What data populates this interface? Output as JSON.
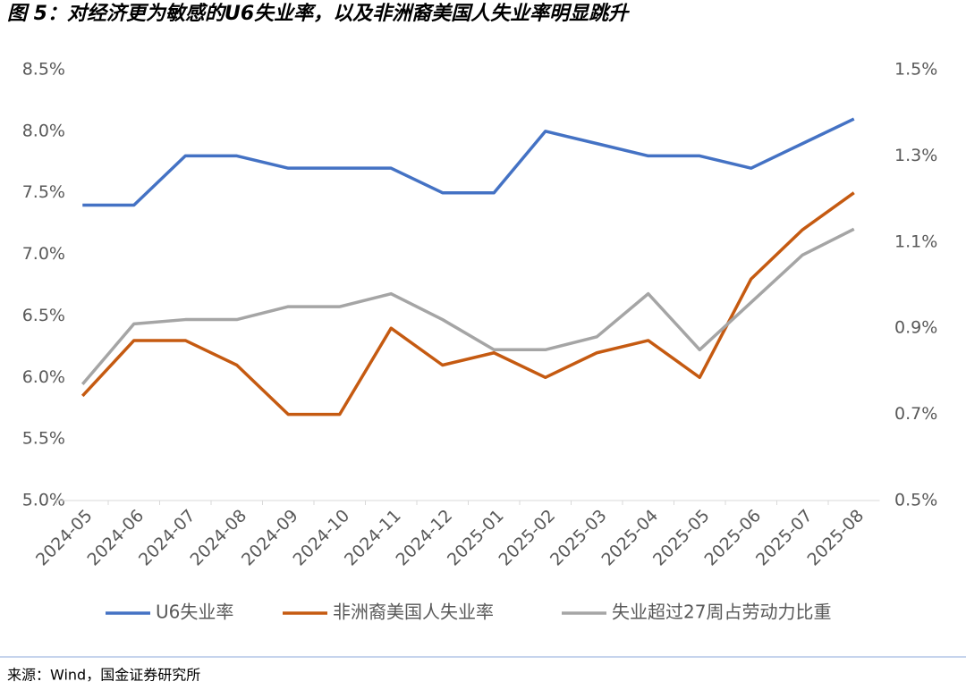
{
  "chart_data": {
    "type": "line",
    "title": "图 5：对经济更为敏感的U6失业率，以及非洲裔美国人失业率明显跳升",
    "source": "来源：Wind，国金证券研究所",
    "categories": [
      "2024-05",
      "2024-06",
      "2024-07",
      "2024-08",
      "2024-09",
      "2024-10",
      "2024-11",
      "2024-12",
      "2025-01",
      "2025-02",
      "2025-03",
      "2025-04",
      "2025-05",
      "2025-06",
      "2025-07",
      "2025-08"
    ],
    "series": [
      {
        "name": "U6失业率",
        "color": "#4472c4",
        "values": [
          7.4,
          7.4,
          7.8,
          7.8,
          7.7,
          7.7,
          7.7,
          7.5,
          7.5,
          8.0,
          7.9,
          7.8,
          7.8,
          7.7,
          7.9,
          8.1
        ]
      },
      {
        "name": "非洲裔美国人失业率",
        "color": "#c55a11",
        "values": [
          5.85,
          6.3,
          6.3,
          6.1,
          5.7,
          5.7,
          6.4,
          6.1,
          6.2,
          6.0,
          6.2,
          6.3,
          6.0,
          6.8,
          7.2,
          7.5
        ]
      },
      {
        "name": "失业超过27周占劳动力比重",
        "color": "#a5a5a5",
        "axis": "y2",
        "values": [
          0.77,
          0.91,
          0.92,
          0.92,
          0.95,
          0.95,
          0.98,
          0.92,
          0.85,
          0.85,
          0.88,
          0.98,
          0.85,
          0.96,
          1.07,
          1.13
        ]
      }
    ],
    "ylim": [
      5.0,
      8.5
    ],
    "yticks": [
      {
        "value": 5.0,
        "label": "5.0%"
      },
      {
        "value": 5.5,
        "label": "5.5%"
      },
      {
        "value": 6.0,
        "label": "6.0%"
      },
      {
        "value": 6.5,
        "label": "6.5%"
      },
      {
        "value": 7.0,
        "label": "7.0%"
      },
      {
        "value": 7.5,
        "label": "7.5%"
      },
      {
        "value": 8.0,
        "label": "8.0%"
      },
      {
        "value": 8.5,
        "label": "8.5%"
      }
    ],
    "y2lim": [
      0.5,
      1.5
    ],
    "y2ticks": [
      {
        "value": 0.5,
        "label": "0.5%"
      },
      {
        "value": 0.7,
        "label": "0.7%"
      },
      {
        "value": 0.9,
        "label": "0.9%"
      },
      {
        "value": 1.1,
        "label": "1.1%"
      },
      {
        "value": 1.3,
        "label": "1.3%"
      },
      {
        "value": 1.5,
        "label": "1.5%"
      }
    ],
    "legend": "bottom"
  }
}
